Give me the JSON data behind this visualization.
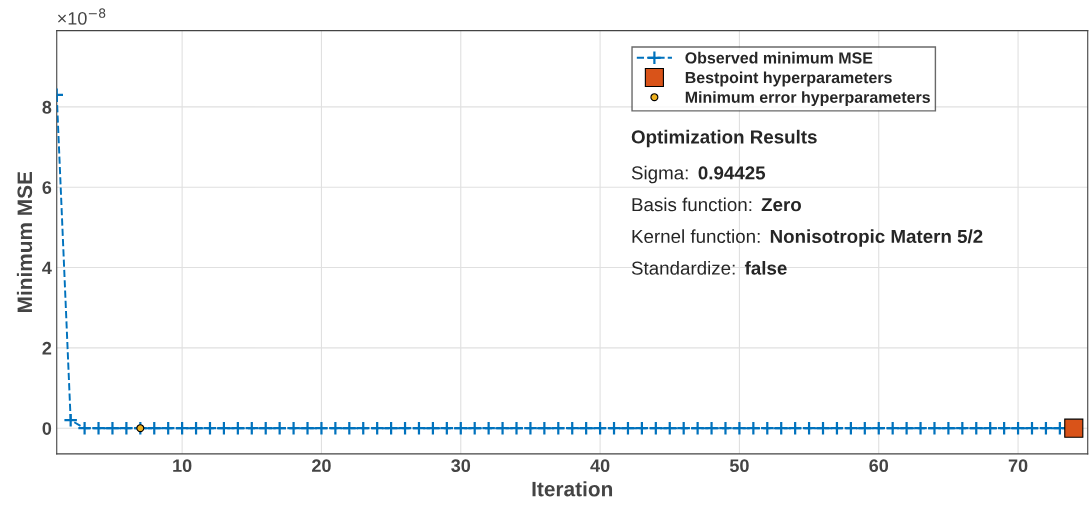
{
  "chart_data": {
    "type": "line",
    "xlabel": "Iteration",
    "ylabel": "Minimum MSE",
    "x": [
      1,
      2,
      3,
      4,
      5,
      6,
      7,
      8,
      9,
      10,
      11,
      12,
      13,
      14,
      15,
      16,
      17,
      18,
      19,
      20,
      21,
      22,
      23,
      24,
      25,
      26,
      27,
      28,
      29,
      30,
      31,
      32,
      33,
      34,
      35,
      36,
      37,
      38,
      39,
      40,
      41,
      42,
      43,
      44,
      45,
      46,
      47,
      48,
      49,
      50,
      51,
      52,
      53,
      54,
      55,
      56,
      57,
      58,
      59,
      60,
      61,
      62,
      63,
      64,
      65,
      66,
      67,
      68,
      69,
      70,
      71,
      72,
      73,
      74
    ],
    "series": [
      {
        "name": "Observed minimum MSE",
        "color": "#0072bd",
        "marker": "cross",
        "line_style": "dashed",
        "values": [
          8.3,
          0.2,
          0,
          0,
          0,
          0,
          0,
          0,
          0,
          0,
          0,
          0,
          0,
          0,
          0,
          0,
          0,
          0,
          0,
          0,
          0,
          0,
          0,
          0,
          0,
          0,
          0,
          0,
          0,
          0,
          0,
          0,
          0,
          0,
          0,
          0,
          0,
          0,
          0,
          0,
          0,
          0,
          0,
          0,
          0,
          0,
          0,
          0,
          0,
          0,
          0,
          0,
          0,
          0,
          0,
          0,
          0,
          0,
          0,
          0,
          0,
          0,
          0,
          0,
          0,
          0,
          0,
          0,
          0,
          0,
          0,
          0,
          0,
          0
        ]
      },
      {
        "name": "Bestpoint hyperparameters",
        "type": "scatter",
        "color": "#d95319",
        "marker": "square",
        "x": [
          74
        ],
        "values": [
          0
        ]
      },
      {
        "name": "Minimum error hyperparameters",
        "type": "scatter",
        "color": "#edb120",
        "marker": "circle",
        "x": [
          7
        ],
        "values": [
          0
        ]
      }
    ],
    "xlim": [
      1,
      75
    ],
    "xticks": [
      10,
      20,
      30,
      40,
      50,
      60,
      70
    ],
    "ylim": [
      -0.64,
      9.9
    ],
    "yticks": [
      0,
      2,
      4,
      6,
      8
    ],
    "grid": true,
    "legend": "top right",
    "annotations": [
      "×10$^{−8}$",
      "Optimization Results",
      "Sigma: 0.94425",
      "Basis function: Zero",
      "Kernel function: Nonisotropic Matern 5/2",
      "Standardize: false"
    ]
  }
}
